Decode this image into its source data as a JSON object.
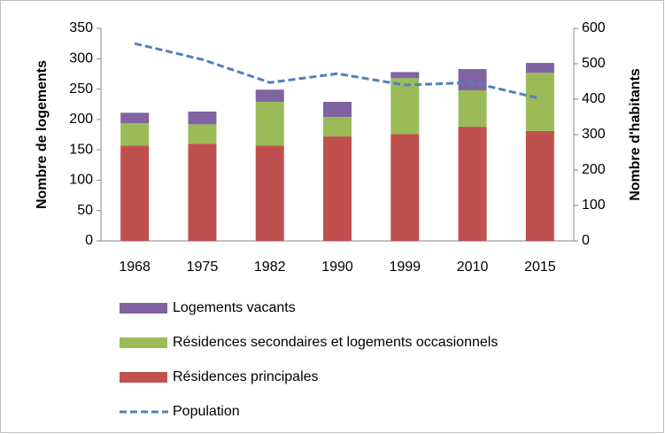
{
  "chart_data": {
    "type": "bar",
    "stacked": true,
    "categories": [
      "1968",
      "1975",
      "1982",
      "1990",
      "1999",
      "2010",
      "2015"
    ],
    "ylabel": "Nombre de logements",
    "y2label": "Nombre d'habitants",
    "ylim": [
      0,
      350
    ],
    "yticks": [
      0,
      50,
      100,
      150,
      200,
      250,
      300,
      350
    ],
    "y2lim": [
      0,
      600
    ],
    "y2ticks": [
      0,
      100,
      200,
      300,
      400,
      500,
      600
    ],
    "series": [
      {
        "name": "Résidences principales",
        "color": "#c0504d",
        "values": [
          157,
          160,
          157,
          172,
          176,
          188,
          181
        ]
      },
      {
        "name": "Résidences secondaires et logements occasionnels",
        "color": "#9bbb59",
        "values": [
          37,
          32,
          72,
          32,
          92,
          60,
          96
        ]
      },
      {
        "name": "Logements vacants",
        "color": "#8064a2",
        "values": [
          17,
          21,
          20,
          25,
          10,
          35,
          16
        ]
      },
      {
        "name": "Population",
        "type": "line",
        "axis": "y2",
        "color": "#4f81bd",
        "dashed": true,
        "values": [
          557,
          512,
          447,
          472,
          440,
          447,
          402
        ]
      }
    ],
    "legend": "bottom"
  }
}
